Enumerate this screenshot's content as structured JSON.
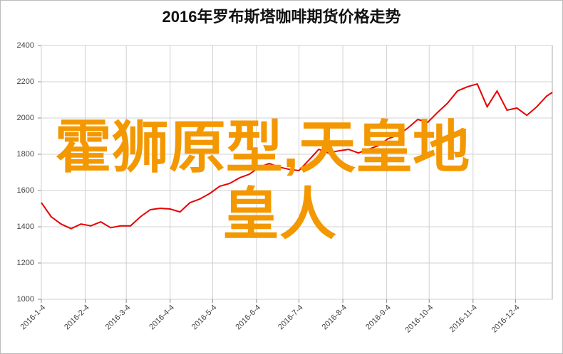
{
  "chart_data": {
    "type": "line",
    "title": "2016年罗布斯塔咖啡期货价格走势",
    "annotations": [
      "霍狮原型,天皇地",
      "皇人"
    ],
    "x": [
      "2016-1-4",
      "2016-1-11",
      "2016-1-18",
      "2016-1-25",
      "2016-2-1",
      "2016-2-8",
      "2016-2-15",
      "2016-2-22",
      "2016-2-29",
      "2016-3-7",
      "2016-3-14",
      "2016-3-21",
      "2016-3-28",
      "2016-4-4",
      "2016-4-11",
      "2016-4-18",
      "2016-4-25",
      "2016-5-2",
      "2016-5-9",
      "2016-5-16",
      "2016-5-23",
      "2016-5-30",
      "2016-6-6",
      "2016-6-13",
      "2016-6-20",
      "2016-6-27",
      "2016-7-4",
      "2016-7-11",
      "2016-7-18",
      "2016-7-25",
      "2016-8-1",
      "2016-8-8",
      "2016-8-15",
      "2016-8-22",
      "2016-8-29",
      "2016-9-5",
      "2016-9-12",
      "2016-9-19",
      "2016-9-26",
      "2016-10-3",
      "2016-10-10",
      "2016-10-17",
      "2016-10-24",
      "2016-10-31",
      "2016-11-7",
      "2016-11-14",
      "2016-11-21",
      "2016-11-28",
      "2016-12-5",
      "2016-12-12",
      "2016-12-19",
      "2016-12-26",
      "2016-12-30"
    ],
    "series": [
      {
        "color": "#e60000",
        "values": [
          1533,
          1455,
          1415,
          1390,
          1415,
          1405,
          1427,
          1395,
          1405,
          1405,
          1455,
          1494,
          1502,
          1498,
          1482,
          1533,
          1553,
          1584,
          1623,
          1639,
          1670,
          1690,
          1729,
          1749,
          1729,
          1717,
          1710,
          1768,
          1827,
          1807,
          1819,
          1827,
          1807,
          1827,
          1847,
          1886,
          1906,
          1945,
          1992,
          1976,
          2031,
          2082,
          2149,
          2172,
          2188,
          2062,
          2149,
          2043,
          2055,
          2015,
          2062,
          2121,
          2141
        ]
      }
    ],
    "xlim": [
      "2016-1-4",
      "2016-12-30"
    ],
    "xticks": [
      "2016-1-4",
      "2016-2-4",
      "2016-3-4",
      "2016-4-4",
      "2016-5-4",
      "2016-6-4",
      "2016-7-4",
      "2016-8-4",
      "2016-9-4",
      "2016-10-4",
      "2016-11-4",
      "2016-12-4"
    ],
    "ylim": [
      1000,
      2400
    ],
    "yticks": [
      1000,
      1200,
      1400,
      1600,
      1800,
      2000,
      2200,
      2400
    ],
    "grid": true
  }
}
